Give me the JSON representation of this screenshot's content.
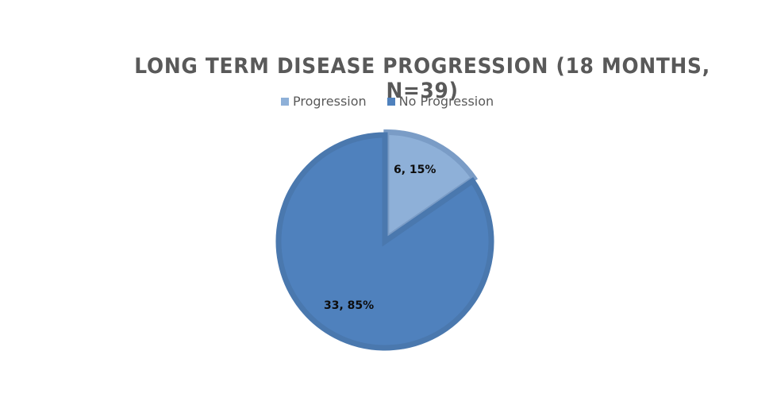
{
  "chart_data": {
    "type": "pie",
    "title": "LONG TERM DISEASE PROGRESSION (18 MONTHS, N=39)",
    "legend_position": "top",
    "categories": [
      "Progression",
      "No Progression"
    ],
    "values": [
      6,
      33
    ],
    "percentages": [
      15,
      85
    ],
    "colors": [
      "#8EB0D8",
      "#4F81BD"
    ],
    "data_labels": [
      "6, 15%",
      "33, 85%"
    ],
    "exploded": [
      "Progression"
    ],
    "total": 39
  },
  "legend": {
    "items": [
      {
        "label": "Progression",
        "color": "#8EB0D8"
      },
      {
        "label": "No Progression",
        "color": "#4F81BD"
      }
    ]
  }
}
